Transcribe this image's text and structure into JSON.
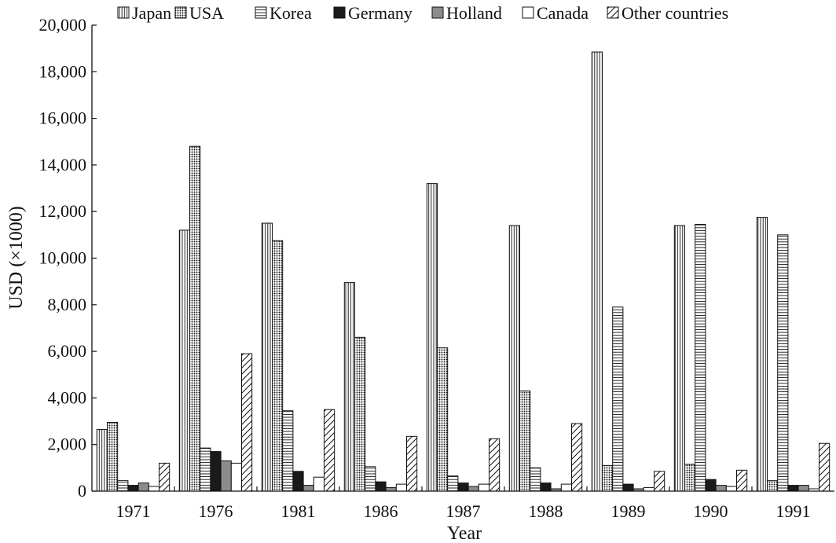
{
  "chart_data": {
    "type": "bar",
    "title": "",
    "xlabel": "Year",
    "ylabel": "USD (×1000)",
    "ylim": [
      0,
      20000
    ],
    "yticks": [
      "0",
      "2,000",
      "4,000",
      "6,000",
      "8,000",
      "10,000",
      "12,000",
      "14,000",
      "16,000",
      "18,000",
      "20,000"
    ],
    "grid": false,
    "legend_position": "top",
    "categories": [
      "1971",
      "1976",
      "1981",
      "1986",
      "1987",
      "1988",
      "1989",
      "1990",
      "1991"
    ],
    "series": [
      {
        "name": "Japan",
        "pattern": "vertical-lines",
        "values": [
          2650,
          11200,
          11500,
          8950,
          13200,
          11400,
          18850,
          11400,
          11750
        ]
      },
      {
        "name": "USA",
        "pattern": "dots",
        "values": [
          2950,
          14800,
          10750,
          6600,
          6150,
          4300,
          1100,
          1150,
          450
        ]
      },
      {
        "name": "Korea",
        "pattern": "horizontal-lines",
        "values": [
          450,
          1850,
          3450,
          1050,
          650,
          1000,
          7900,
          11450,
          11000
        ]
      },
      {
        "name": "Germany",
        "pattern": "solid-black",
        "values": [
          250,
          1700,
          850,
          400,
          350,
          350,
          300,
          500,
          250
        ]
      },
      {
        "name": "Holland",
        "pattern": "solid-gray",
        "values": [
          350,
          1300,
          250,
          150,
          200,
          100,
          100,
          250,
          250
        ]
      },
      {
        "name": "Canada",
        "pattern": "white",
        "values": [
          200,
          1200,
          600,
          300,
          300,
          300,
          150,
          200,
          100
        ]
      },
      {
        "name": "Other countries",
        "pattern": "diagonal-lines",
        "values": [
          1200,
          5900,
          3500,
          2350,
          2250,
          2900,
          850,
          900,
          2050
        ]
      }
    ],
    "colors": {
      "stroke": "#111111",
      "gray": "#8c8c8c",
      "black": "#1a1a1a"
    }
  }
}
